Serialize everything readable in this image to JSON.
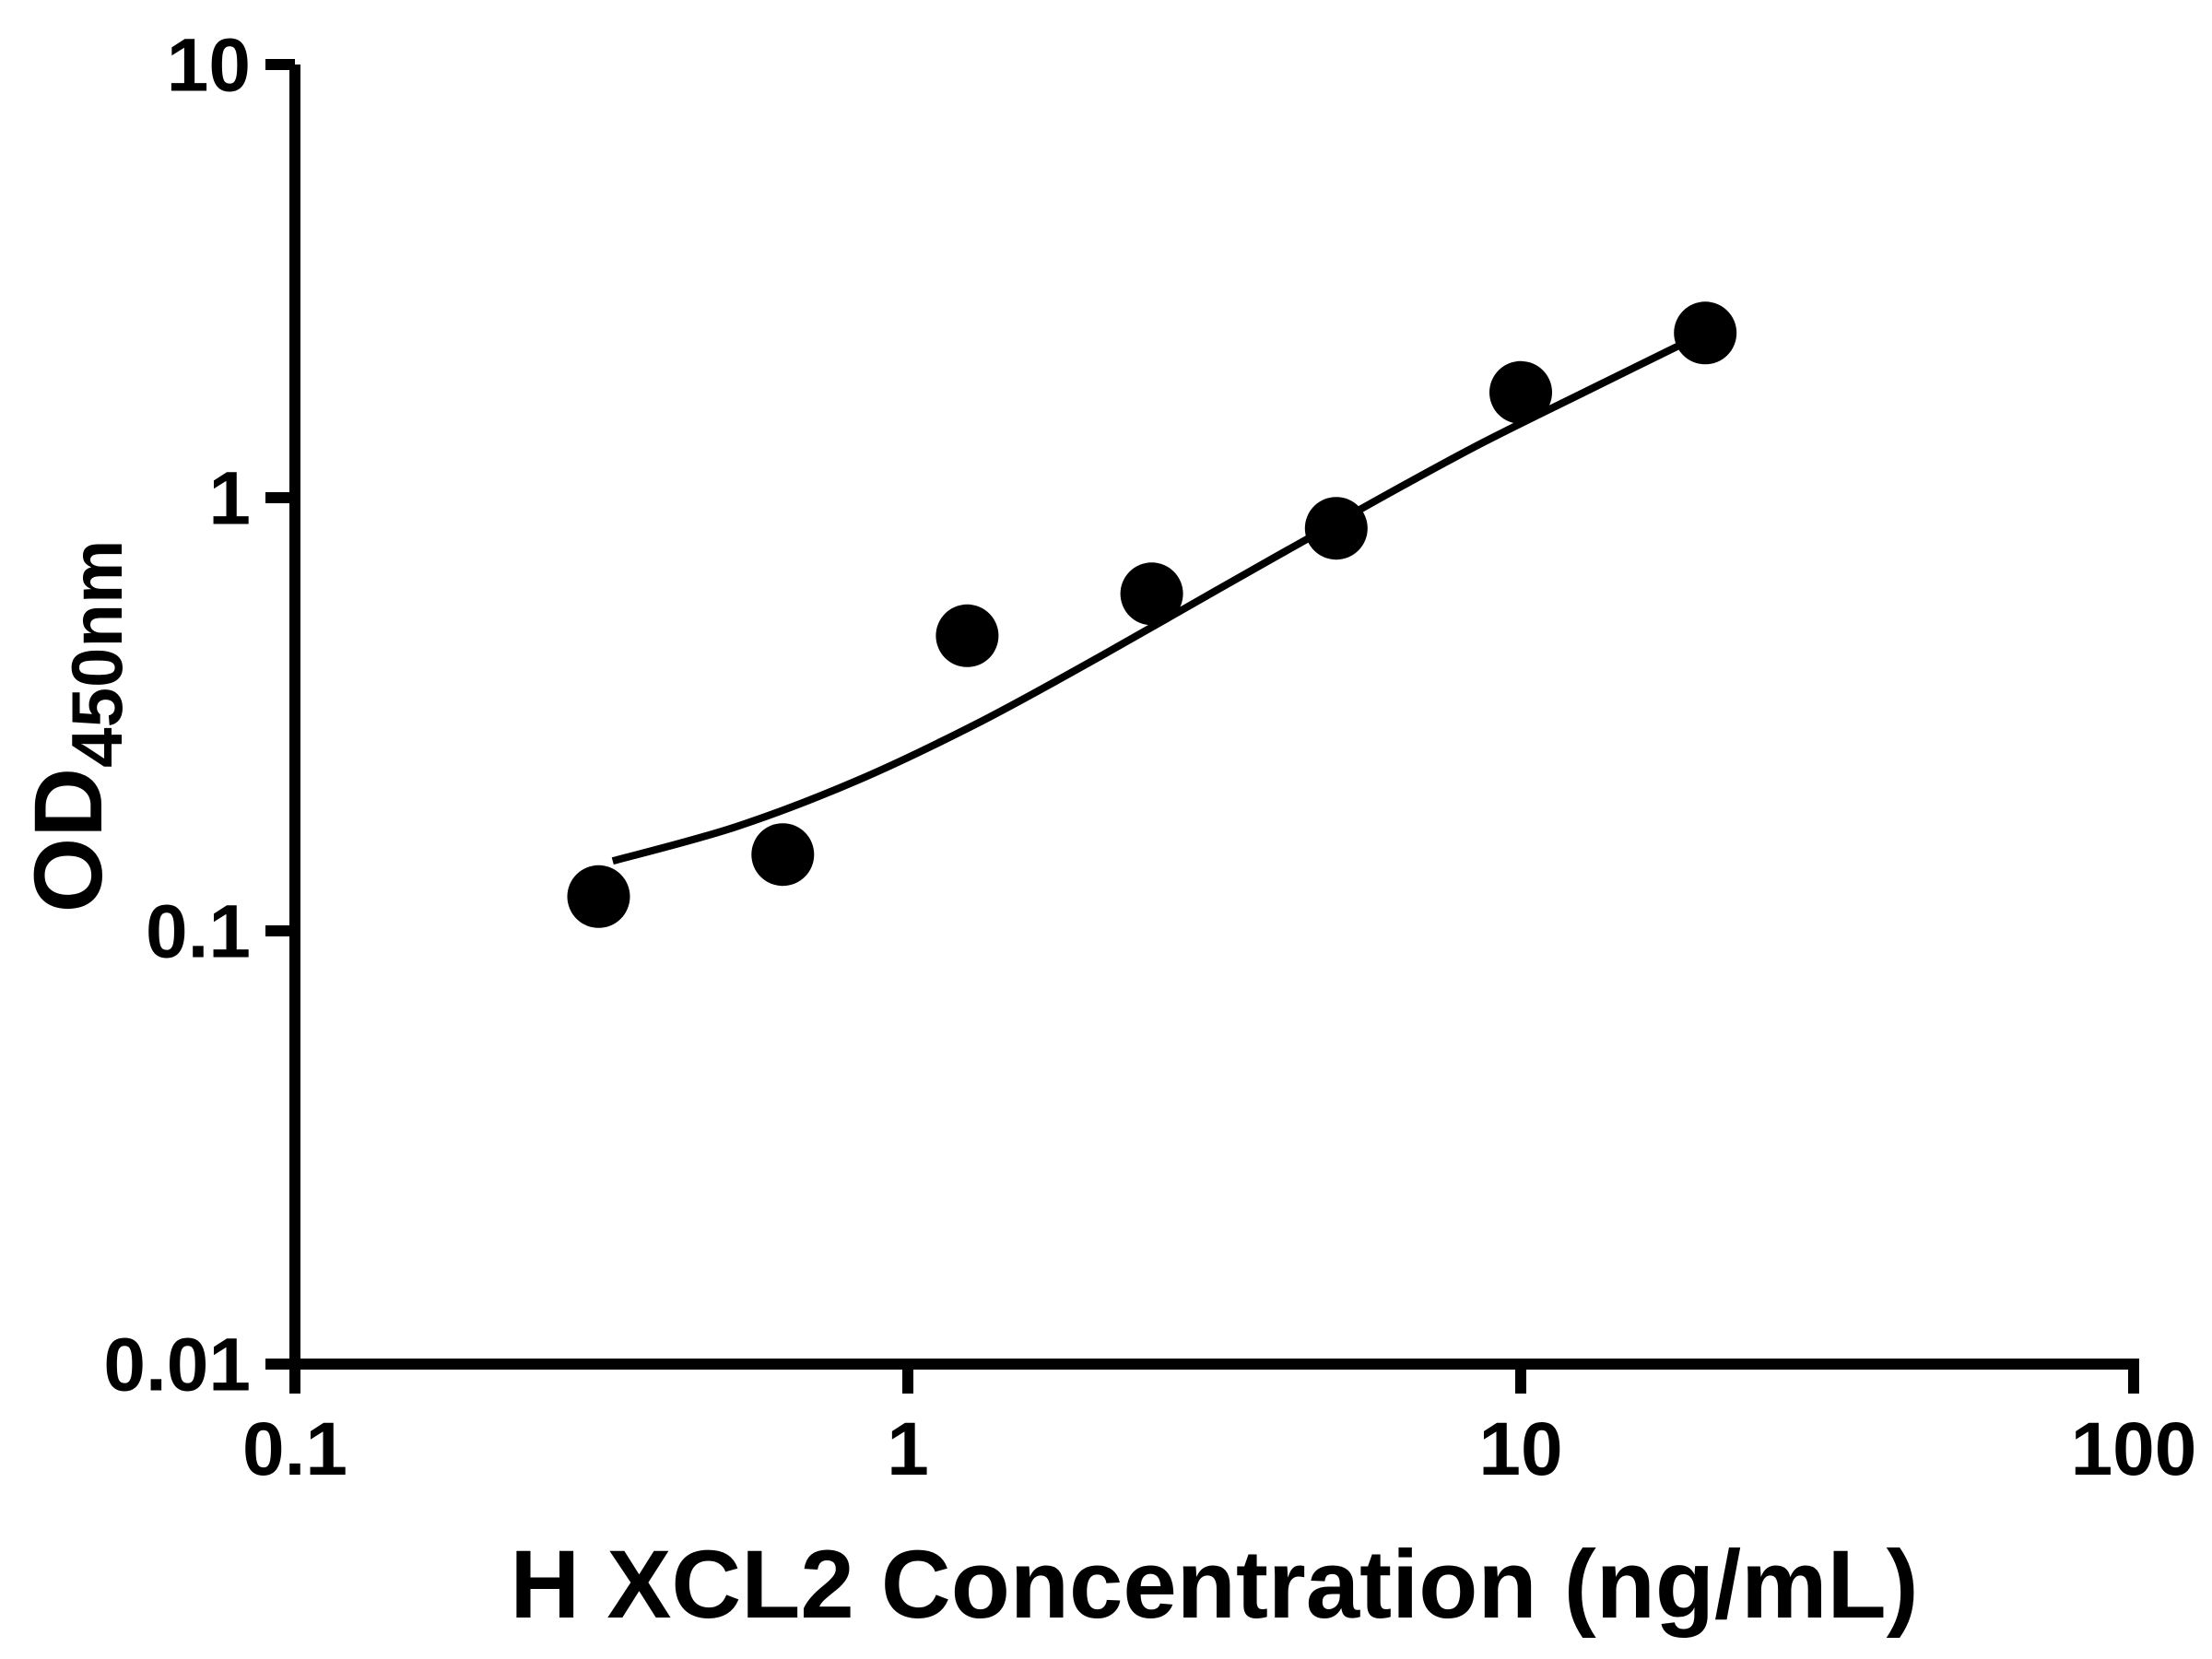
{
  "chart_data": {
    "type": "scatter",
    "title": "",
    "xlabel": "H XCL2 Concentration (ng/mL)",
    "ylabel_main": "OD",
    "ylabel_sub": "450nm",
    "x_scale": "log",
    "y_scale": "log",
    "xlim": [
      0.1,
      100
    ],
    "ylim": [
      0.01,
      10
    ],
    "grid": false,
    "legend": "none",
    "x_ticks": [
      {
        "value": 0.1,
        "label": "0.1"
      },
      {
        "value": 1,
        "label": "1"
      },
      {
        "value": 10,
        "label": "10"
      },
      {
        "value": 100,
        "label": "100"
      }
    ],
    "y_ticks": [
      {
        "value": 0.01,
        "label": "0.01"
      },
      {
        "value": 0.1,
        "label": "0.1"
      },
      {
        "value": 1,
        "label": "1"
      },
      {
        "value": 10,
        "label": "10"
      }
    ],
    "points": [
      {
        "x": 0.313,
        "y": 0.12
      },
      {
        "x": 0.625,
        "y": 0.15
      },
      {
        "x": 1.25,
        "y": 0.48
      },
      {
        "x": 2.5,
        "y": 0.6
      },
      {
        "x": 5,
        "y": 0.85
      },
      {
        "x": 10,
        "y": 1.75
      },
      {
        "x": 20,
        "y": 2.4
      }
    ],
    "fit_curve": [
      [
        0.33,
        0.145
      ],
      [
        0.525,
        0.174
      ],
      [
        0.83,
        0.223
      ],
      [
        1.32,
        0.305
      ],
      [
        2.09,
        0.435
      ],
      [
        3.31,
        0.63
      ],
      [
        5.25,
        0.91
      ],
      [
        8.32,
        1.3
      ],
      [
        13.2,
        1.8
      ],
      [
        19.95,
        2.4
      ]
    ],
    "colors": {
      "axis": "#000000",
      "point": "#000000",
      "curve": "#000000"
    }
  }
}
